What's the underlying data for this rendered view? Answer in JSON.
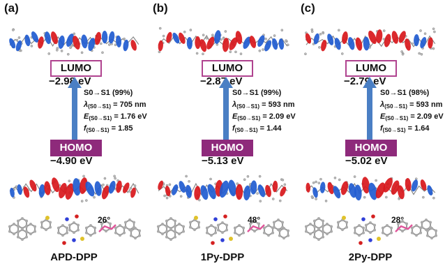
{
  "panels": [
    {
      "label": "(a)",
      "lumo_label": "LUMO",
      "lumo_energy": "−2.98 eV",
      "transition": "S0→S1 (99%)",
      "lambda_sub": "(S0→S1)",
      "lambda_value": "= 705 nm",
      "energy_sub": "(S0→S1)",
      "energy_value": "= 1.76 eV",
      "f_sub": "(S0→S1)",
      "f_value": "= 1.85",
      "homo_label": "HOMO",
      "homo_energy": "−4.90 eV",
      "angle": "26°",
      "name": "APD-DPP"
    },
    {
      "label": "(b)",
      "lumo_label": "LUMO",
      "lumo_energy": "−2.87 eV",
      "transition": "S0→S1 (99%)",
      "lambda_sub": "(S0→S1)",
      "lambda_value": "= 593 nm",
      "energy_sub": "(S0→S1)",
      "energy_value": "= 2.09 eV",
      "f_sub": "(S0→S1)",
      "f_value": "= 1.44",
      "homo_label": "HOMO",
      "homo_energy": "−5.13 eV",
      "angle": "48°",
      "name": "1Py-DPP"
    },
    {
      "label": "(c)",
      "lumo_label": "LUMO",
      "lumo_energy": "−2.79 eV",
      "transition": "S0→S1 (98%)",
      "lambda_sub": "(S0→S1)",
      "lambda_value": "= 593 nm",
      "energy_sub": "(S0→S1)",
      "energy_value": "= 2.09 eV",
      "f_sub": "(S0→S1)",
      "f_value": "= 1.64",
      "homo_label": "HOMO",
      "homo_energy": "−5.02 eV",
      "angle": "28°",
      "name": "2Py-DPP"
    }
  ],
  "symbols": {
    "lambda": "λ",
    "energy": "E",
    "f": "f"
  },
  "colors": {
    "lobe_red": "#d8171b",
    "lobe_blue": "#1f5bd0",
    "arrow": "#4a7fc4",
    "lumo_border": "#b0438f",
    "homo_fill": "#8e2a7b",
    "sulfur": "#e0c22a",
    "nitrogen": "#3040d8",
    "oxygen": "#d42020",
    "bond_highlight": "#e0559a"
  }
}
